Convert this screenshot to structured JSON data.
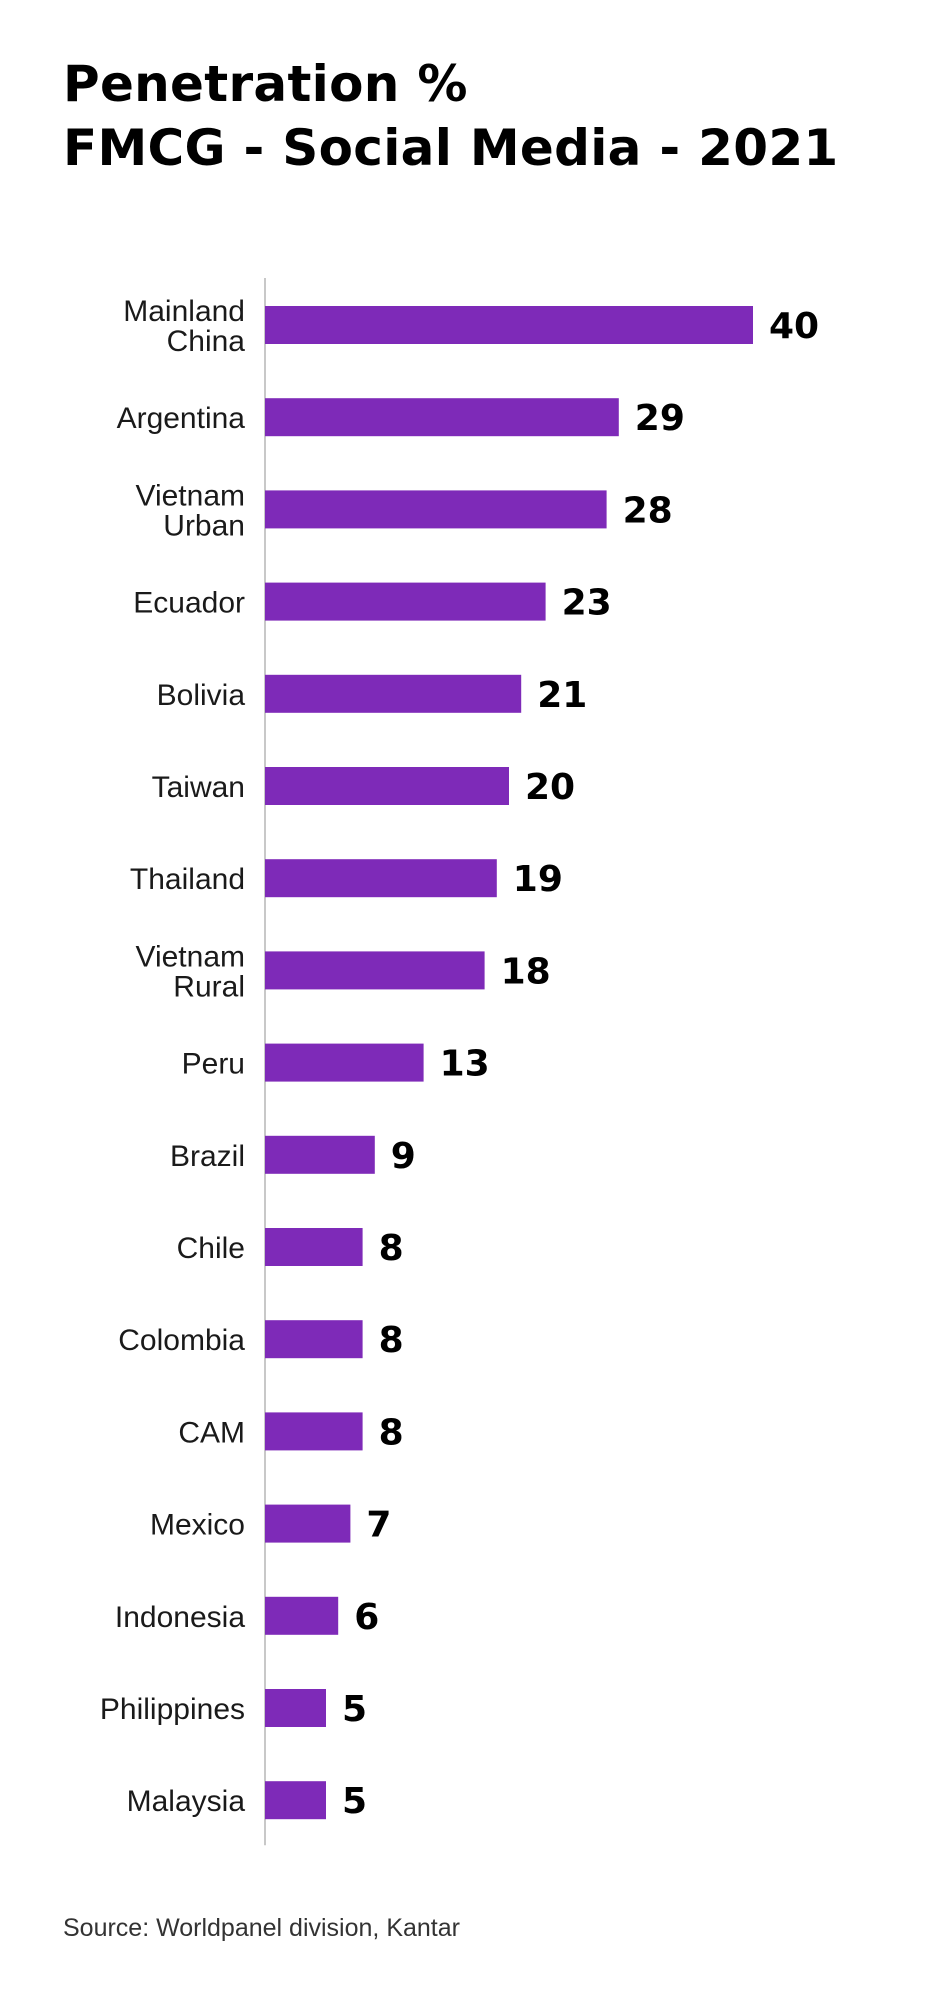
{
  "chart_data": {
    "type": "bar",
    "orientation": "horizontal",
    "title": [
      "Penetration %",
      "FMCG - Social Media - 2021"
    ],
    "categories": [
      "Mainland China",
      "Argentina",
      "Vietnam Urban",
      "Ecuador",
      "Bolivia",
      "Taiwan",
      "Thailand",
      "Vietnam Rural",
      "Peru",
      "Brazil",
      "Chile",
      "Colombia",
      "CAM",
      "Mexico",
      "Indonesia",
      "Philippines",
      "Malaysia"
    ],
    "category_lines": [
      [
        "Mainland",
        "China"
      ],
      [
        "Argentina"
      ],
      [
        "Vietnam",
        "Urban"
      ],
      [
        "Ecuador"
      ],
      [
        "Bolivia"
      ],
      [
        "Taiwan"
      ],
      [
        "Thailand"
      ],
      [
        "Vietnam",
        "Rural"
      ],
      [
        "Peru"
      ],
      [
        "Brazil"
      ],
      [
        "Chile"
      ],
      [
        "Colombia"
      ],
      [
        "CAM"
      ],
      [
        "Mexico"
      ],
      [
        "Indonesia"
      ],
      [
        "Philippines"
      ],
      [
        "Malaysia"
      ]
    ],
    "values": [
      40,
      29,
      28,
      23,
      21,
      20,
      19,
      18,
      13,
      9,
      8,
      8,
      8,
      7,
      6,
      5,
      5
    ],
    "xlabel": "",
    "ylabel": "",
    "xlim": [
      0,
      40
    ],
    "grid": false,
    "data_labels": true,
    "bar_color": "#7e2ab8",
    "axis_color": "#c8c8c8"
  },
  "source": "Source: Worldpanel division, Kantar"
}
